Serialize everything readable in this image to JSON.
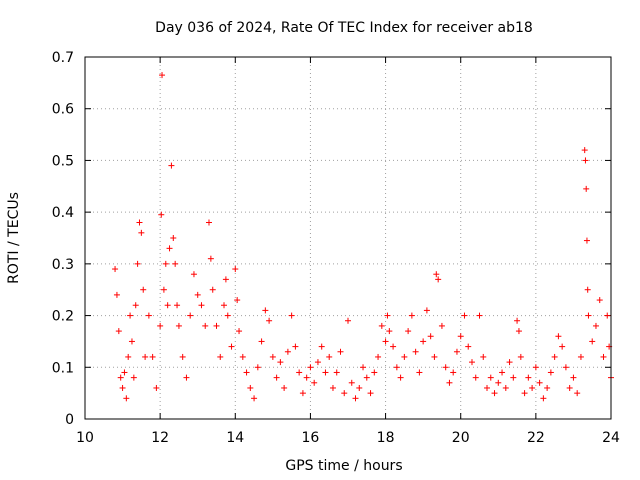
{
  "chart_data": {
    "type": "scatter",
    "title": "Day 036 of 2024, Rate Of TEC Index for receiver ab18",
    "xlabel": "GPS time / hours",
    "ylabel": "ROTI / TECUs",
    "xlim": [
      10,
      24
    ],
    "ylim": [
      0,
      0.7
    ],
    "xticks": [
      "10",
      "12",
      "14",
      "16",
      "18",
      "20",
      "22",
      "24"
    ],
    "yticks": [
      "0",
      "0.1",
      "0.2",
      "0.3",
      "0.4",
      "0.5",
      "0.6",
      "0.7"
    ],
    "grid": true,
    "marker": "plus",
    "color": "#ff0000",
    "series": [
      {
        "points": [
          [
            10.8,
            0.29
          ],
          [
            10.85,
            0.24
          ],
          [
            10.9,
            0.17
          ],
          [
            10.95,
            0.08
          ],
          [
            11.0,
            0.06
          ],
          [
            11.05,
            0.09
          ],
          [
            11.1,
            0.04
          ],
          [
            11.15,
            0.12
          ],
          [
            11.2,
            0.2
          ],
          [
            11.25,
            0.15
          ],
          [
            11.3,
            0.08
          ],
          [
            11.35,
            0.22
          ],
          [
            11.4,
            0.3
          ],
          [
            11.45,
            0.38
          ],
          [
            11.5,
            0.36
          ],
          [
            11.55,
            0.25
          ],
          [
            11.6,
            0.12
          ],
          [
            11.7,
            0.2
          ],
          [
            11.8,
            0.12
          ],
          [
            11.9,
            0.06
          ],
          [
            12.0,
            0.18
          ],
          [
            12.03,
            0.395
          ],
          [
            12.05,
            0.665
          ],
          [
            12.1,
            0.25
          ],
          [
            12.15,
            0.3
          ],
          [
            12.2,
            0.22
          ],
          [
            12.25,
            0.33
          ],
          [
            12.3,
            0.49
          ],
          [
            12.35,
            0.35
          ],
          [
            12.4,
            0.3
          ],
          [
            12.45,
            0.22
          ],
          [
            12.5,
            0.18
          ],
          [
            12.6,
            0.12
          ],
          [
            12.7,
            0.08
          ],
          [
            12.8,
            0.2
          ],
          [
            12.9,
            0.28
          ],
          [
            13.0,
            0.24
          ],
          [
            13.1,
            0.22
          ],
          [
            13.2,
            0.18
          ],
          [
            13.3,
            0.38
          ],
          [
            13.35,
            0.31
          ],
          [
            13.4,
            0.25
          ],
          [
            13.5,
            0.18
          ],
          [
            13.6,
            0.12
          ],
          [
            13.7,
            0.22
          ],
          [
            13.75,
            0.27
          ],
          [
            13.8,
            0.2
          ],
          [
            13.9,
            0.14
          ],
          [
            14.0,
            0.29
          ],
          [
            14.05,
            0.23
          ],
          [
            14.1,
            0.17
          ],
          [
            14.2,
            0.12
          ],
          [
            14.3,
            0.09
          ],
          [
            14.4,
            0.06
          ],
          [
            14.5,
            0.04
          ],
          [
            14.6,
            0.1
          ],
          [
            14.7,
            0.15
          ],
          [
            14.8,
            0.21
          ],
          [
            14.9,
            0.19
          ],
          [
            15.0,
            0.12
          ],
          [
            15.1,
            0.08
          ],
          [
            15.2,
            0.11
          ],
          [
            15.3,
            0.06
          ],
          [
            15.4,
            0.13
          ],
          [
            15.5,
            0.2
          ],
          [
            15.6,
            0.14
          ],
          [
            15.7,
            0.09
          ],
          [
            15.8,
            0.05
          ],
          [
            15.9,
            0.08
          ],
          [
            16.0,
            0.1
          ],
          [
            16.1,
            0.07
          ],
          [
            16.2,
            0.11
          ],
          [
            16.3,
            0.14
          ],
          [
            16.4,
            0.09
          ],
          [
            16.5,
            0.12
          ],
          [
            16.6,
            0.06
          ],
          [
            16.7,
            0.09
          ],
          [
            16.8,
            0.13
          ],
          [
            16.9,
            0.05
          ],
          [
            17.0,
            0.19
          ],
          [
            17.1,
            0.07
          ],
          [
            17.2,
            0.04
          ],
          [
            17.3,
            0.06
          ],
          [
            17.4,
            0.1
          ],
          [
            17.5,
            0.08
          ],
          [
            17.6,
            0.05
          ],
          [
            17.7,
            0.09
          ],
          [
            17.8,
            0.12
          ],
          [
            17.9,
            0.18
          ],
          [
            18.0,
            0.15
          ],
          [
            18.05,
            0.2
          ],
          [
            18.1,
            0.17
          ],
          [
            18.2,
            0.14
          ],
          [
            18.3,
            0.1
          ],
          [
            18.4,
            0.08
          ],
          [
            18.5,
            0.12
          ],
          [
            18.6,
            0.17
          ],
          [
            18.7,
            0.2
          ],
          [
            18.8,
            0.13
          ],
          [
            18.9,
            0.09
          ],
          [
            19.0,
            0.15
          ],
          [
            19.1,
            0.21
          ],
          [
            19.2,
            0.16
          ],
          [
            19.3,
            0.12
          ],
          [
            19.35,
            0.28
          ],
          [
            19.4,
            0.27
          ],
          [
            19.5,
            0.18
          ],
          [
            19.6,
            0.1
          ],
          [
            19.7,
            0.07
          ],
          [
            19.8,
            0.09
          ],
          [
            19.9,
            0.13
          ],
          [
            20.0,
            0.16
          ],
          [
            20.1,
            0.2
          ],
          [
            20.2,
            0.14
          ],
          [
            20.3,
            0.11
          ],
          [
            20.4,
            0.08
          ],
          [
            20.5,
            0.2
          ],
          [
            20.6,
            0.12
          ],
          [
            20.7,
            0.06
          ],
          [
            20.8,
            0.08
          ],
          [
            20.9,
            0.05
          ],
          [
            21.0,
            0.07
          ],
          [
            21.1,
            0.09
          ],
          [
            21.2,
            0.06
          ],
          [
            21.3,
            0.11
          ],
          [
            21.4,
            0.08
          ],
          [
            21.5,
            0.19
          ],
          [
            21.55,
            0.17
          ],
          [
            21.6,
            0.12
          ],
          [
            21.7,
            0.05
          ],
          [
            21.8,
            0.08
          ],
          [
            21.9,
            0.06
          ],
          [
            22.0,
            0.1
          ],
          [
            22.1,
            0.07
          ],
          [
            22.2,
            0.04
          ],
          [
            22.3,
            0.06
          ],
          [
            22.4,
            0.09
          ],
          [
            22.5,
            0.12
          ],
          [
            22.6,
            0.16
          ],
          [
            22.7,
            0.14
          ],
          [
            22.8,
            0.1
          ],
          [
            22.9,
            0.06
          ],
          [
            23.0,
            0.08
          ],
          [
            23.1,
            0.05
          ],
          [
            23.2,
            0.12
          ],
          [
            23.3,
            0.52
          ],
          [
            23.32,
            0.5
          ],
          [
            23.34,
            0.445
          ],
          [
            23.36,
            0.345
          ],
          [
            23.38,
            0.25
          ],
          [
            23.4,
            0.2
          ],
          [
            23.5,
            0.15
          ],
          [
            23.6,
            0.18
          ],
          [
            23.7,
            0.23
          ],
          [
            23.8,
            0.12
          ],
          [
            23.9,
            0.2
          ],
          [
            23.95,
            0.14
          ],
          [
            24.0,
            0.08
          ]
        ]
      }
    ]
  }
}
